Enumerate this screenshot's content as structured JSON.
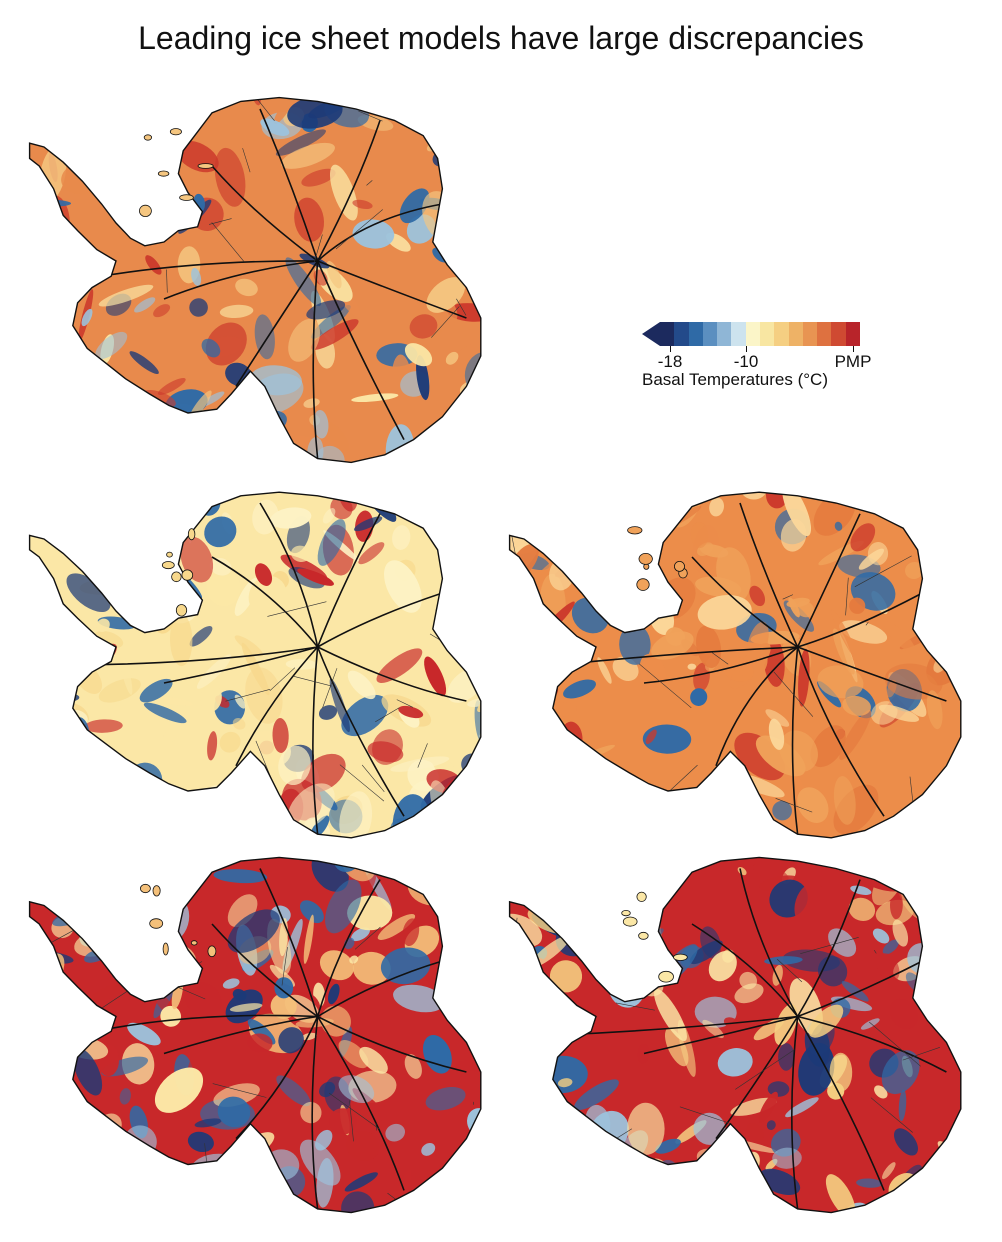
{
  "title": "Leading ice sheet models have large discrepancies",
  "legend": {
    "label": "Basal Temperatures (°C)",
    "ticks": [
      "-18",
      "-10",
      "PMP"
    ],
    "colors": [
      "#1c2a5e",
      "#234a8a",
      "#2f6aa6",
      "#5b8fc0",
      "#8fb6d6",
      "#cde3ee",
      "#fbf5c8",
      "#f8e6a2",
      "#f5cf82",
      "#eeb266",
      "#e89452",
      "#de7140",
      "#cf4a32",
      "#b8242a"
    ]
  },
  "panels": [
    {
      "name": "top-model",
      "palette": [
        "#e88a4c",
        "#f5c680",
        "#fbe7a6",
        "#cc3a2c",
        "#2f6aa6",
        "#1c3a78",
        "#9cc3dd"
      ]
    },
    {
      "name": "middle-left-model",
      "palette": [
        "#fbe7a6",
        "#f7d88c",
        "#fdf2c4",
        "#c8282a",
        "#2f6aa6",
        "#1c3a78"
      ]
    },
    {
      "name": "middle-right-model",
      "palette": [
        "#ec8d4a",
        "#f0a25a",
        "#e47a3e",
        "#cc3a2c",
        "#fbd79a",
        "#2f6aa6"
      ]
    },
    {
      "name": "bottom-left-model",
      "palette": [
        "#c8282a",
        "#f4c07a",
        "#fbe7a6",
        "#2f6aa6",
        "#1c3a78",
        "#9cc3dd"
      ]
    },
    {
      "name": "bottom-right-model",
      "palette": [
        "#c8282a",
        "#fbe7a6",
        "#f5cf82",
        "#2f6aa6",
        "#1c3a78",
        "#9cc3dd"
      ]
    }
  ]
}
